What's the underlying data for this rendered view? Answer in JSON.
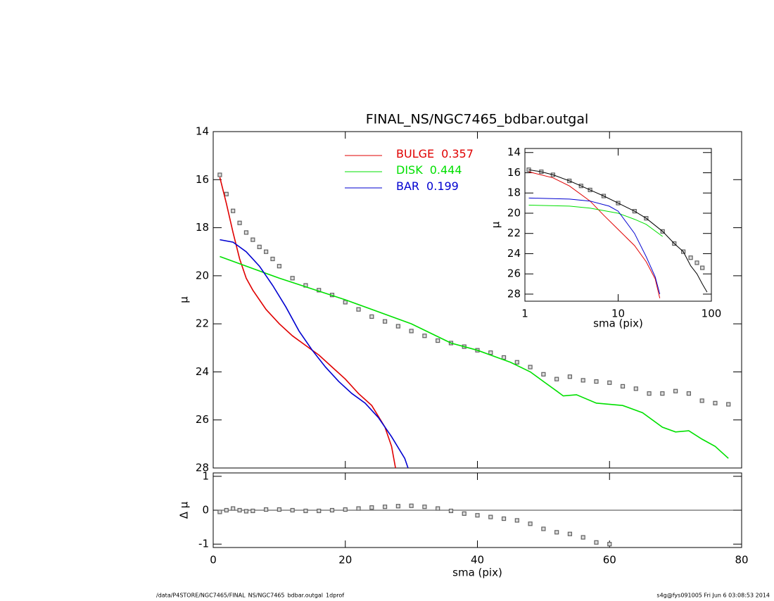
{
  "chart_data": [
    {
      "type": "line",
      "title": "FINAL_NS/NGC7465_bdbar.outgal",
      "ylabel": "μ",
      "xlim": [
        0,
        80
      ],
      "xticks": [
        0,
        20,
        40,
        60,
        80
      ],
      "ylim": [
        14,
        28
      ],
      "y_inverted": true,
      "yticks": [
        14,
        16,
        18,
        20,
        22,
        24,
        26,
        28
      ],
      "series": [
        {
          "color": "#606060",
          "style": "points",
          "x": [
            1,
            2,
            3,
            4,
            5,
            6,
            7,
            8,
            9,
            10,
            12,
            14,
            16,
            18,
            20,
            22,
            24,
            26,
            28,
            30,
            32,
            34,
            36,
            38,
            40,
            42,
            44,
            46,
            48,
            50,
            52,
            54,
            56,
            58,
            60,
            62,
            64,
            66,
            68,
            70,
            72,
            74,
            76,
            78
          ],
          "values": [
            15.8,
            16.6,
            17.3,
            17.8,
            18.2,
            18.5,
            18.8,
            19.0,
            19.3,
            19.6,
            20.1,
            20.4,
            20.6,
            20.8,
            21.1,
            21.4,
            21.7,
            21.9,
            22.1,
            22.3,
            22.5,
            22.7,
            22.8,
            22.95,
            23.1,
            23.2,
            23.4,
            23.6,
            23.8,
            24.1,
            24.3,
            24.2,
            24.35,
            24.4,
            24.45,
            24.6,
            24.7,
            24.9,
            24.9,
            24.8,
            24.9,
            25.2,
            25.3,
            25.35
          ]
        },
        {
          "name": "BULGE",
          "fraction": 0.357,
          "color": "#e00000",
          "style": "line",
          "x": [
            1,
            2,
            3,
            4,
            5,
            6,
            8,
            10,
            12,
            14,
            16,
            18,
            20,
            22,
            24,
            26,
            27,
            27.6
          ],
          "values": [
            15.9,
            17.0,
            18.2,
            19.3,
            20.1,
            20.6,
            21.4,
            22.0,
            22.5,
            22.9,
            23.3,
            23.8,
            24.3,
            24.9,
            25.4,
            26.3,
            27.1,
            28.0
          ]
        },
        {
          "name": "DISK",
          "fraction": 0.444,
          "color": "#00e000",
          "style": "line",
          "x": [
            1,
            10,
            20,
            30,
            36,
            40,
            45,
            48,
            50,
            52,
            53,
            55,
            58,
            62,
            65,
            68,
            70,
            72,
            74,
            76,
            78
          ],
          "values": [
            19.2,
            20.1,
            21.0,
            22.0,
            22.8,
            23.1,
            23.6,
            24.0,
            24.4,
            24.8,
            25.0,
            24.95,
            25.3,
            25.4,
            25.7,
            26.3,
            26.5,
            26.45,
            26.8,
            27.1,
            27.6
          ]
        },
        {
          "name": "BAR",
          "fraction": 0.199,
          "color": "#0000d0",
          "style": "line",
          "x": [
            1,
            3,
            5,
            7,
            9,
            11,
            13,
            15,
            17,
            19,
            21,
            23,
            25,
            27,
            29,
            29.5
          ],
          "values": [
            18.5,
            18.6,
            19.0,
            19.6,
            20.4,
            21.3,
            22.3,
            23.1,
            23.8,
            24.4,
            24.9,
            25.3,
            25.9,
            26.7,
            27.6,
            28.0
          ]
        }
      ]
    },
    {
      "type": "line",
      "xlabel": "sma (pix)",
      "ylabel": "Δ μ",
      "xlim": [
        0,
        80
      ],
      "xticks": [
        0,
        20,
        40,
        60,
        80
      ],
      "ylim": [
        -1.1,
        1.1
      ],
      "yticks": [
        -1,
        0,
        1
      ],
      "reference_line": 0,
      "series": [
        {
          "color": "#606060",
          "style": "points",
          "x": [
            1,
            2,
            3,
            4,
            5,
            6,
            8,
            10,
            12,
            14,
            16,
            18,
            20,
            22,
            24,
            26,
            28,
            30,
            32,
            34,
            36,
            38,
            40,
            42,
            44,
            46,
            48,
            50,
            52,
            54,
            56,
            58,
            60
          ],
          "values": [
            -0.05,
            0.0,
            0.05,
            0.0,
            -0.03,
            -0.02,
            0.02,
            0.02,
            0.0,
            -0.02,
            -0.02,
            0.0,
            0.02,
            0.05,
            0.08,
            0.1,
            0.12,
            0.13,
            0.1,
            0.05,
            -0.02,
            -0.1,
            -0.15,
            -0.2,
            -0.25,
            -0.3,
            -0.4,
            -0.55,
            -0.65,
            -0.7,
            -0.8,
            -0.95,
            -1.0
          ]
        }
      ]
    },
    {
      "type": "line",
      "xlabel": "sma (pix)",
      "ylabel": "μ",
      "xscale": "log",
      "xlim": [
        1,
        100
      ],
      "xticks": [
        1,
        10,
        100
      ],
      "ylim": [
        13.6,
        28.7
      ],
      "y_inverted": true,
      "yticks": [
        14,
        16,
        18,
        20,
        22,
        24,
        26,
        28
      ],
      "series": [
        {
          "color": "#606060",
          "style": "points",
          "x": [
            1.1,
            1.5,
            2,
            3,
            4,
            5,
            7,
            10,
            15,
            20,
            30,
            40,
            50,
            60,
            70,
            80
          ],
          "values": [
            15.7,
            15.9,
            16.2,
            16.8,
            17.3,
            17.7,
            18.3,
            19.0,
            19.8,
            20.5,
            21.8,
            23.0,
            23.8,
            24.4,
            24.9,
            25.4
          ]
        },
        {
          "color": "#000000",
          "style": "line",
          "x": [
            1.1,
            1.5,
            2,
            3,
            4,
            5,
            7,
            10,
            15,
            20,
            30,
            40,
            50,
            60,
            70,
            80,
            90
          ],
          "values": [
            15.7,
            15.9,
            16.2,
            16.8,
            17.3,
            17.7,
            18.3,
            19.0,
            19.8,
            20.5,
            21.8,
            23.0,
            23.8,
            25.2,
            26.0,
            27.0,
            27.8
          ]
        },
        {
          "color": "#e00000",
          "style": "line",
          "x": [
            1.1,
            2,
            3,
            5,
            7,
            10,
            15,
            20,
            25,
            28
          ],
          "values": [
            15.9,
            16.5,
            17.3,
            18.8,
            20.2,
            21.6,
            23.2,
            24.8,
            26.5,
            28.4
          ]
        },
        {
          "color": "#00e000",
          "style": "line",
          "x": [
            1.1,
            3,
            5,
            10,
            15,
            20,
            30
          ],
          "values": [
            19.2,
            19.3,
            19.5,
            20.0,
            20.6,
            21.1,
            22.3
          ]
        },
        {
          "color": "#0000d0",
          "style": "line",
          "x": [
            1.1,
            3,
            5,
            8,
            10,
            15,
            20,
            25,
            28
          ],
          "values": [
            18.5,
            18.6,
            18.8,
            19.3,
            19.8,
            22.0,
            24.3,
            26.3,
            28.0
          ]
        }
      ]
    }
  ],
  "footer": {
    "left": "/data/P4STORE/NGC7465/FINAL_NS/NGC7465_bdbar.outgal_1dprof",
    "right": "s4g@fys091005  Fri Jun  6 03:08:53 2014"
  }
}
